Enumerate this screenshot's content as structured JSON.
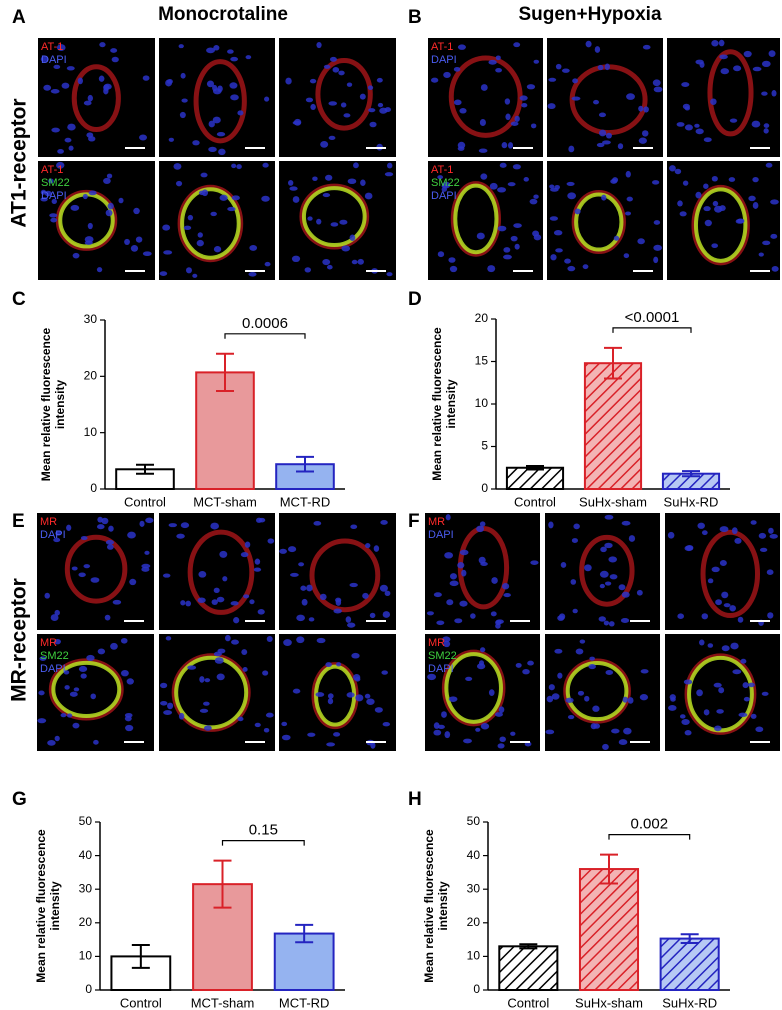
{
  "figure": {
    "panel_letters": [
      "A",
      "B",
      "C",
      "D",
      "E",
      "F",
      "G",
      "H"
    ],
    "headings": [
      "Monocrotaline",
      "Sugen+Hypoxia"
    ],
    "row_labels": [
      "AT1-receptor",
      "MR-receptor"
    ],
    "image_groups": [
      {
        "top": [
          "AT-1",
          "DAPI"
        ],
        "bottom": [
          "AT-1",
          "SM22",
          "DAPI"
        ]
      },
      {
        "top": [
          "AT-1",
          "DAPI"
        ],
        "bottom": [
          "AT-1",
          "SM22",
          "DAPI"
        ]
      },
      {
        "top": [
          "MR",
          "DAPI"
        ],
        "bottom": [
          "MR",
          "SM22",
          "DAPI"
        ]
      },
      {
        "top": [
          "MR",
          "DAPI"
        ],
        "bottom": [
          "MR",
          "SM22",
          "DAPI"
        ]
      }
    ]
  },
  "chart_data": [
    {
      "type": "bar",
      "ylabel": [
        "Mean relative fluorescence",
        "intensity"
      ],
      "categories": [
        "Control",
        "MCT-sham",
        "MCT-RD"
      ],
      "values": [
        3.5,
        20.7,
        4.4
      ],
      "errors": [
        0.8,
        3.3,
        1.3
      ],
      "colors": [
        "#ffffff",
        "#e8999b",
        "#95b3f0"
      ],
      "edge_colors": [
        "#000000",
        "#d92128",
        "#2424c0"
      ],
      "hatch": false,
      "ylim": [
        0,
        30
      ],
      "yticks": [
        0,
        10,
        20,
        30
      ],
      "annotation": "0.0006"
    },
    {
      "type": "bar",
      "ylabel": [
        "Mean relative fluorescence",
        "intensity"
      ],
      "categories": [
        "Control",
        "SuHx-sham",
        "SuHx-RD"
      ],
      "values": [
        2.5,
        14.8,
        1.8
      ],
      "errors": [
        0.2,
        1.8,
        0.3
      ],
      "colors": [
        "#ffffff",
        "#f3b4b4",
        "#b6c8f4"
      ],
      "edge_colors": [
        "#000000",
        "#d92128",
        "#2424c0"
      ],
      "hatch": true,
      "ylim": [
        0,
        20
      ],
      "yticks": [
        0,
        5,
        10,
        15,
        20
      ],
      "annotation": "<0.0001"
    },
    {
      "type": "bar",
      "ylabel": [
        "Mean relative fluorescence",
        "intensity"
      ],
      "categories": [
        "Control",
        "MCT-sham",
        "MCT-RD"
      ],
      "values": [
        10,
        31.5,
        16.8
      ],
      "errors": [
        3.4,
        7,
        2.6
      ],
      "colors": [
        "#ffffff",
        "#e8999b",
        "#95b3f0"
      ],
      "edge_colors": [
        "#000000",
        "#d92128",
        "#2424c0"
      ],
      "hatch": false,
      "ylim": [
        0,
        50
      ],
      "yticks": [
        0,
        10,
        20,
        30,
        40,
        50
      ],
      "annotation": "0.15"
    },
    {
      "type": "bar",
      "ylabel": [
        "Mean relative fluorescence",
        "intensity"
      ],
      "categories": [
        "Control",
        "SuHx-sham",
        "SuHx-RD"
      ],
      "values": [
        13,
        36,
        15.3
      ],
      "errors": [
        0.6,
        4.3,
        1.3
      ],
      "colors": [
        "#ffffff",
        "#f3b4b4",
        "#b6c8f4"
      ],
      "edge_colors": [
        "#000000",
        "#d92128",
        "#2424c0"
      ],
      "hatch": true,
      "ylim": [
        0,
        50
      ],
      "yticks": [
        0,
        10,
        20,
        30,
        40,
        50
      ],
      "annotation": "0.002"
    }
  ]
}
